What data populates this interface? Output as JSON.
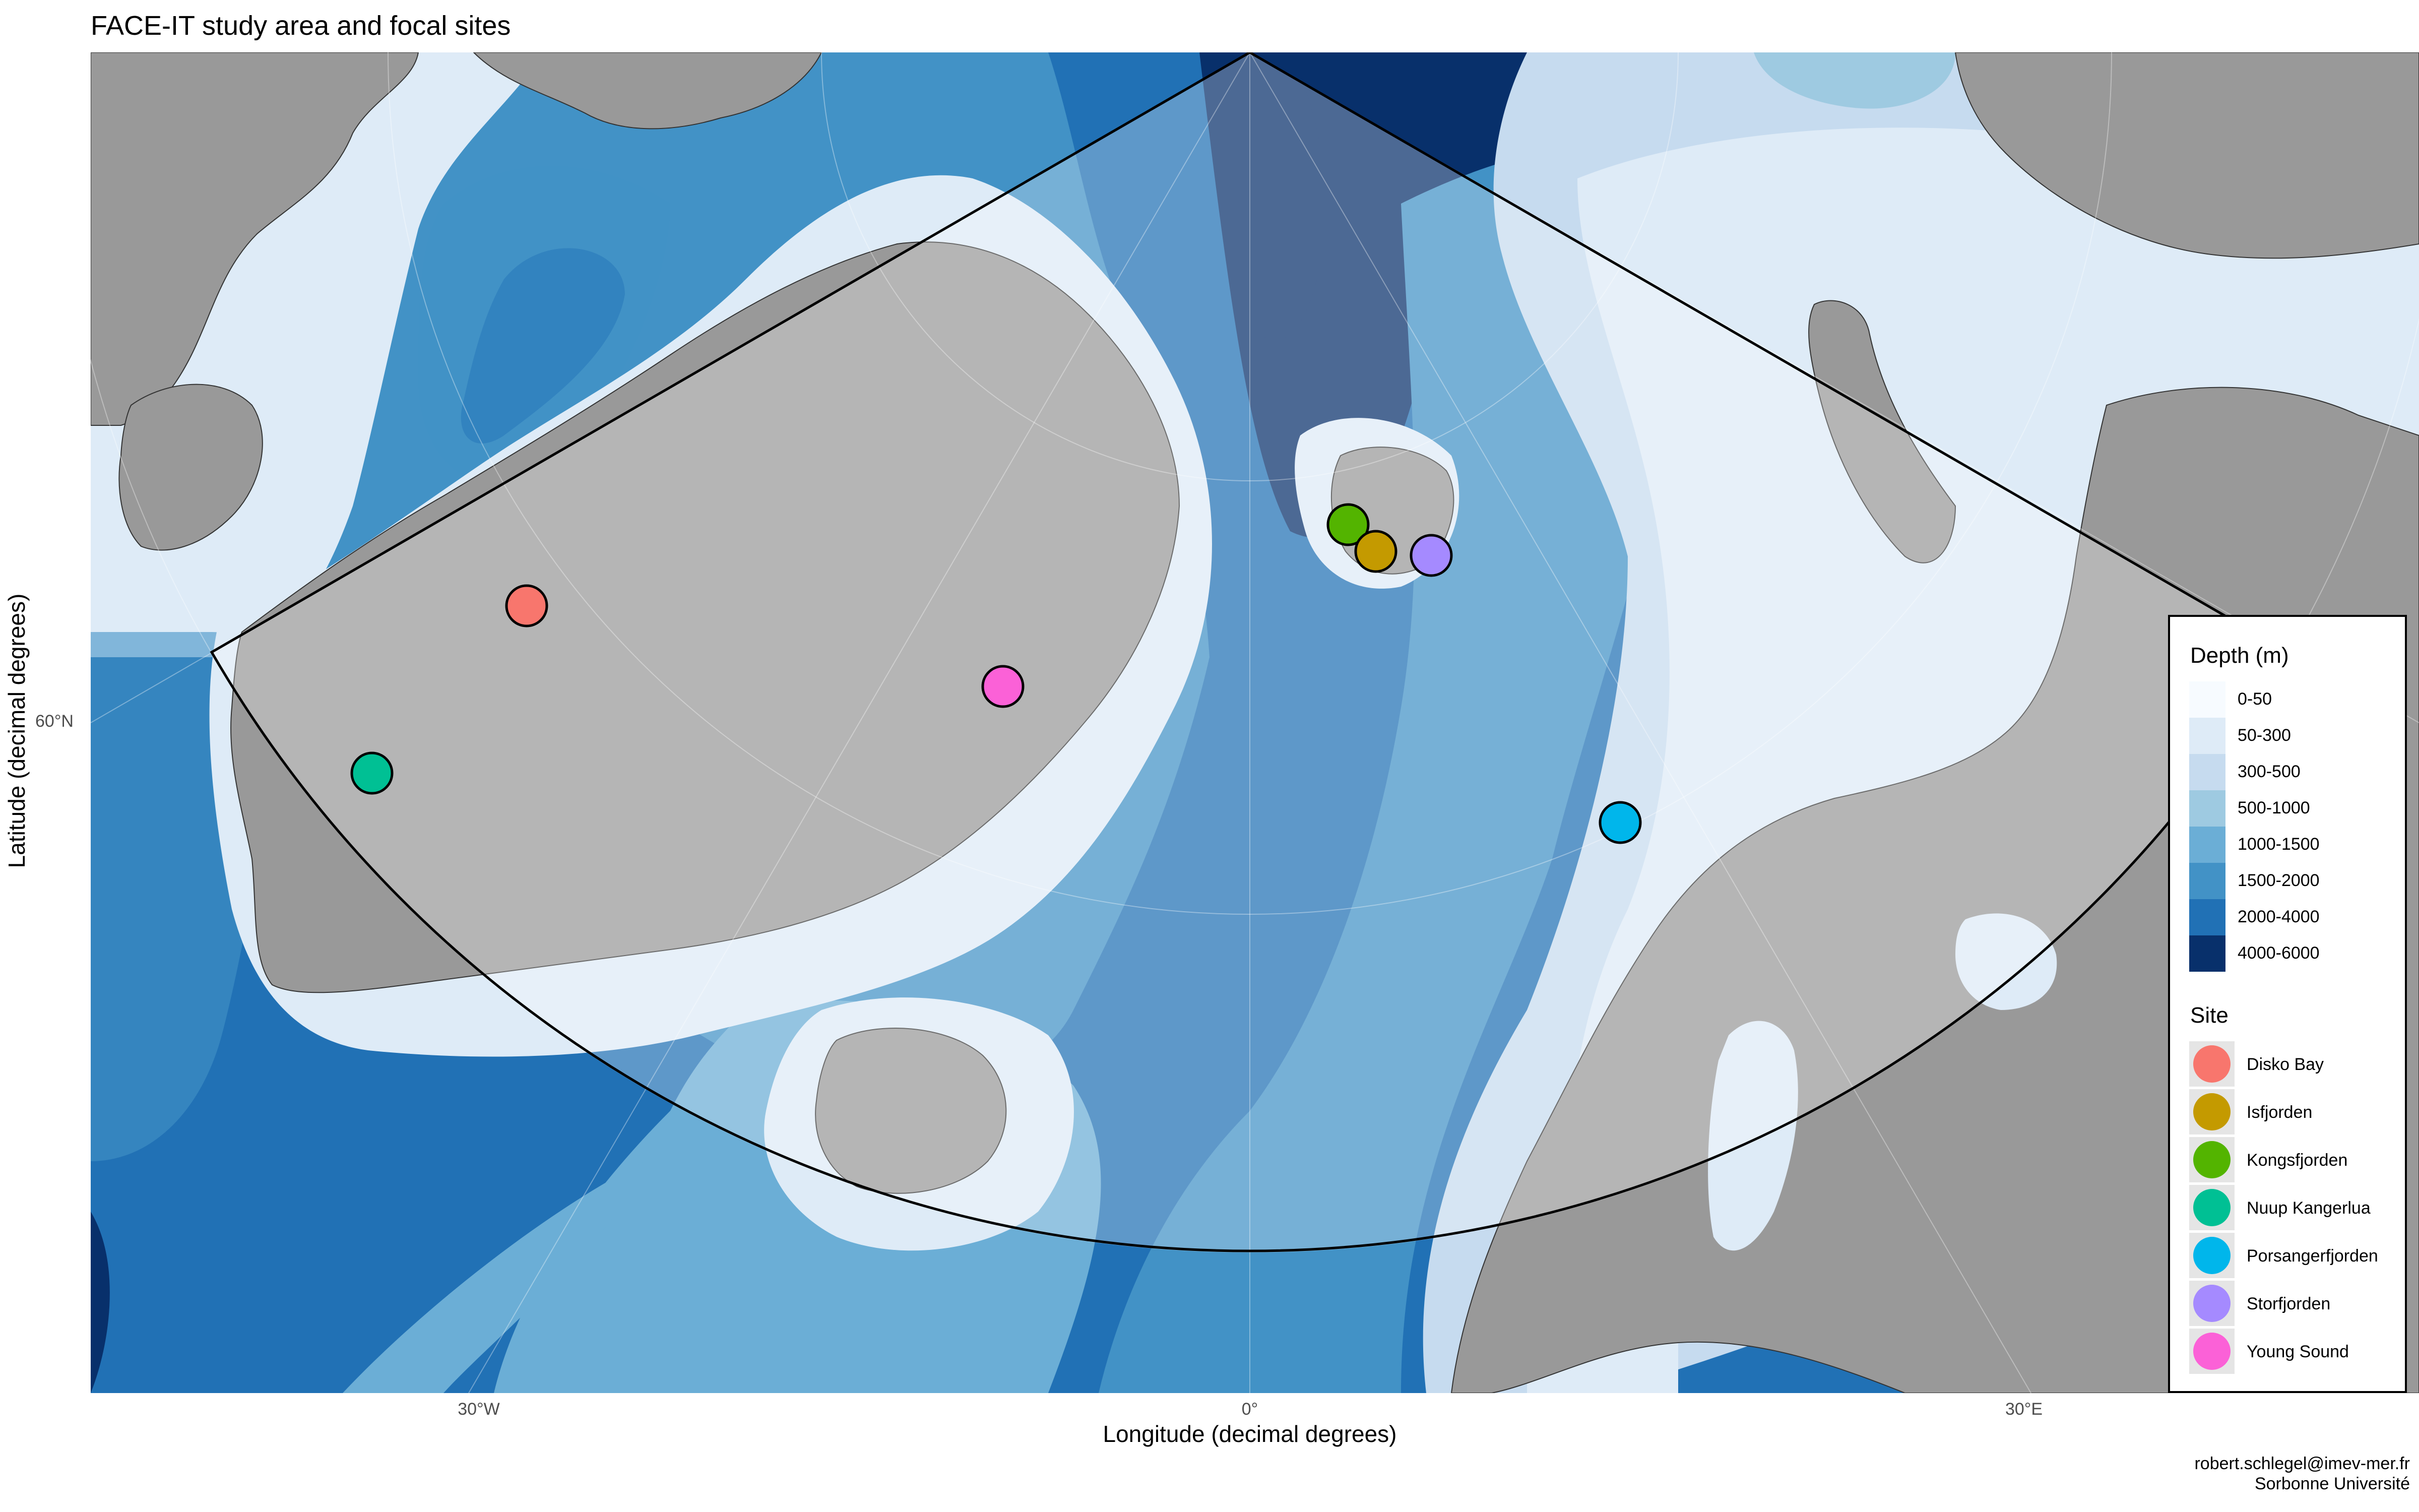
{
  "title": "FACE-IT study area and focal sites",
  "axes": {
    "xlabel": "Longitude (decimal degrees)",
    "ylabel": "Latitude (decimal degrees)",
    "x_ticks": [
      "30°W",
      "0°",
      "30°E"
    ],
    "y_ticks": [
      "60°N"
    ]
  },
  "legend": {
    "depth_title": "Depth (m)",
    "depth_classes": [
      {
        "label": "0-50",
        "color": "#f7fbff"
      },
      {
        "label": "50-300",
        "color": "#deebf7"
      },
      {
        "label": "300-500",
        "color": "#c6dbef"
      },
      {
        "label": "500-1000",
        "color": "#9ecae1"
      },
      {
        "label": "1000-1500",
        "color": "#6baed6"
      },
      {
        "label": "1500-2000",
        "color": "#4292c6"
      },
      {
        "label": "2000-4000",
        "color": "#2171b5"
      },
      {
        "label": "4000-6000",
        "color": "#08306b"
      }
    ],
    "site_title": "Site",
    "sites": [
      {
        "label": "Disko Bay",
        "color": "#f8766d"
      },
      {
        "label": "Isfjorden",
        "color": "#c49a00"
      },
      {
        "label": "Kongsfjorden",
        "color": "#53b400"
      },
      {
        "label": "Nuup Kangerlua",
        "color": "#00c094"
      },
      {
        "label": "Porsangerfjorden",
        "color": "#00b6eb"
      },
      {
        "label": "Storfjorden",
        "color": "#a58aff"
      },
      {
        "label": "Young Sound",
        "color": "#fb61d7"
      }
    ]
  },
  "map": {
    "projection": "polar stereographic (north)",
    "land_color": "#999999",
    "study_area_fill": "rgba(255,255,255,0.28)",
    "study_area_outline": "#000000"
  },
  "caption": {
    "line1": "robert.schlegel@imev-mer.fr",
    "line2": "Sorbonne Université"
  }
}
